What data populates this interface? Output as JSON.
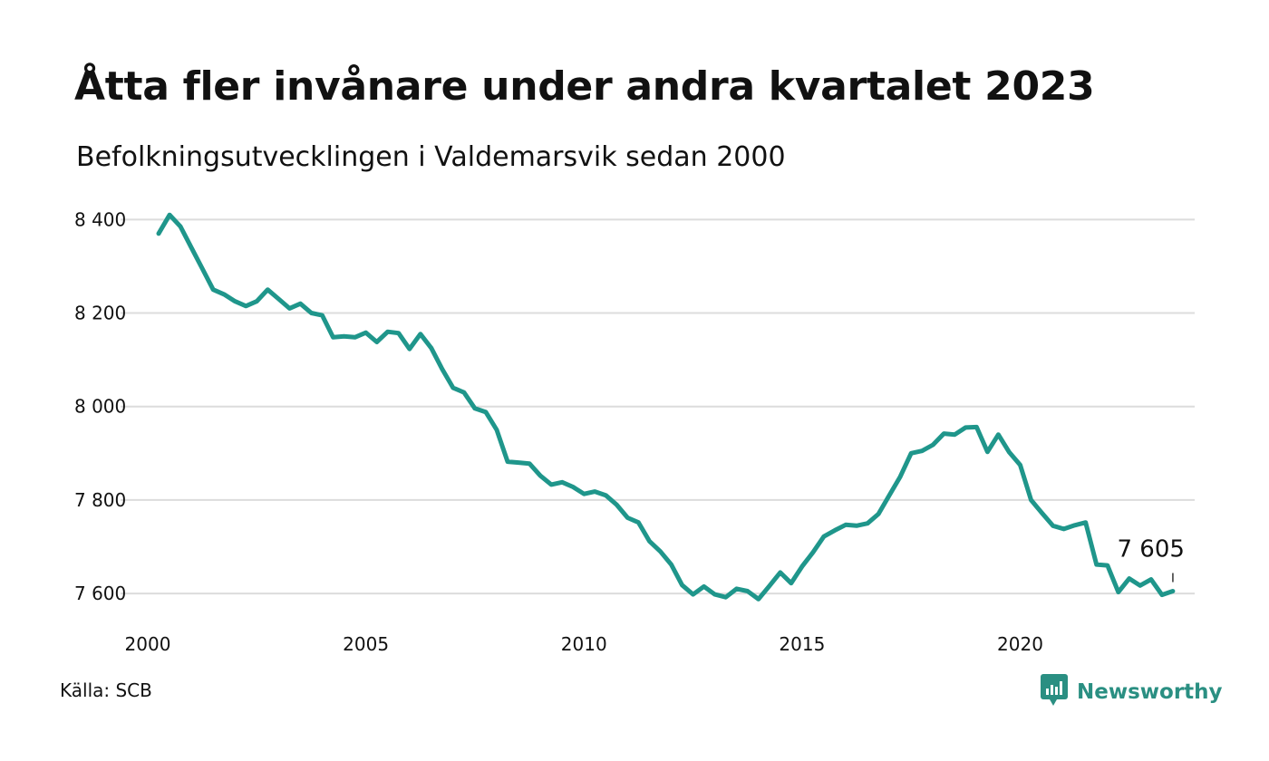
{
  "title": "Åtta fler invånare under andra kvartalet 2023",
  "subtitle": "Befolkningsutvecklingen i Valdemarsvik sedan 2000",
  "source": "Källa: SCB",
  "brand": {
    "name": "Newsworthy",
    "icon": "newsworthy-logo-icon",
    "color": "#2a8f82"
  },
  "chart_data": {
    "type": "line",
    "title": "Åtta fler invånare under andra kvartalet 2023",
    "subtitle": "Befolkningsutvecklingen i Valdemarsvik sedan 2000",
    "xlabel": "",
    "ylabel": "",
    "xlim": [
      2000,
      2024
    ],
    "ylim": [
      7575,
      8420
    ],
    "x_ticks": [
      2000,
      2005,
      2010,
      2015,
      2020
    ],
    "x_tick_labels": [
      "2000",
      "2005",
      "2010",
      "2015",
      "2020"
    ],
    "y_ticks": [
      7600,
      7800,
      8000,
      8200,
      8400
    ],
    "y_tick_labels": [
      "7 600",
      "7 800",
      "8 000",
      "8 200",
      "8 400"
    ],
    "grid": "horizontal",
    "line_color": "#1f968b",
    "end_label": "7 605",
    "series": [
      {
        "x": [
          2000.25,
          2000.5,
          2000.75,
          2001.0,
          2001.25,
          2001.5,
          2001.75,
          2002.0,
          2002.25,
          2002.5,
          2002.75,
          2003.0,
          2003.25,
          2003.5,
          2003.75,
          2004.0,
          2004.25,
          2004.5,
          2004.75,
          2005.0,
          2005.25,
          2005.5,
          2005.75,
          2006.0,
          2006.25,
          2006.5,
          2006.75,
          2007.0,
          2007.25,
          2007.5,
          2007.75,
          2008.0,
          2008.25,
          2008.5,
          2008.75,
          2009.0,
          2009.25,
          2009.5,
          2009.75,
          2010.0,
          2010.25,
          2010.5,
          2010.75,
          2011.0,
          2011.25,
          2011.5,
          2011.75,
          2012.0,
          2012.25,
          2012.5,
          2012.75,
          2013.0,
          2013.25,
          2013.5,
          2013.75,
          2014.0,
          2014.25,
          2014.5,
          2014.75,
          2015.0,
          2015.25,
          2015.5,
          2015.75,
          2016.0,
          2016.25,
          2016.5,
          2016.75,
          2017.0,
          2017.25,
          2017.5,
          2017.75,
          2018.0,
          2018.25,
          2018.5,
          2018.75,
          2019.0,
          2019.25,
          2019.5,
          2019.75,
          2020.0,
          2020.25,
          2020.5,
          2020.75,
          2021.0,
          2021.25,
          2021.5,
          2021.75,
          2022.0,
          2022.25,
          2022.5,
          2022.75,
          2023.0,
          2023.25,
          2023.5
        ],
        "values": [
          8370,
          8410,
          8385,
          8340,
          8295,
          8250,
          8240,
          8225,
          8215,
          8225,
          8250,
          8230,
          8210,
          8220,
          8200,
          8195,
          8148,
          8150,
          8148,
          8158,
          8138,
          8160,
          8157,
          8123,
          8155,
          8125,
          8080,
          8040,
          8030,
          7996,
          7988,
          7950,
          7882,
          7880,
          7878,
          7852,
          7833,
          7838,
          7828,
          7813,
          7818,
          7810,
          7790,
          7762,
          7752,
          7712,
          7690,
          7662,
          7618,
          7598,
          7615,
          7598,
          7592,
          7610,
          7605,
          7588,
          7616,
          7645,
          7622,
          7658,
          7688,
          7722,
          7735,
          7747,
          7745,
          7750,
          7770,
          7810,
          7850,
          7900,
          7905,
          7918,
          7942,
          7940,
          7955,
          7956,
          7903,
          7940,
          7902,
          7875,
          7800,
          7772,
          7745,
          7738,
          7746,
          7752,
          7662,
          7660,
          7603,
          7632,
          7617,
          7630,
          7597,
          7605
        ]
      }
    ]
  }
}
